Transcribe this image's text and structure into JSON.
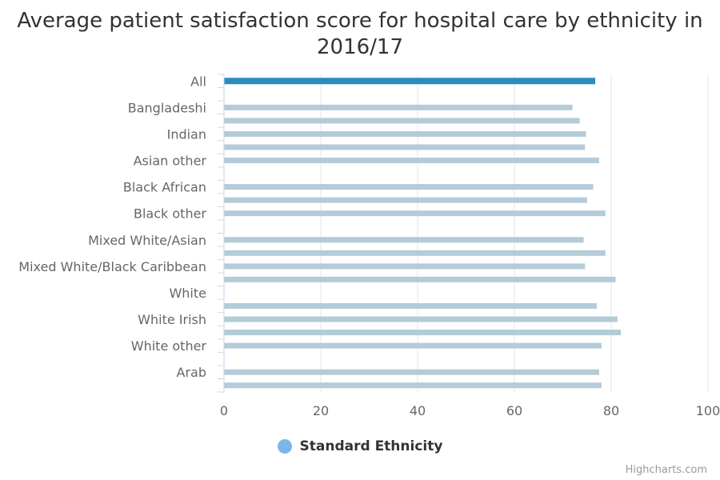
{
  "chart_data": {
    "type": "bar",
    "orientation": "horizontal",
    "title": "Average patient satisfaction score for hospital care by ethnicity in 2016/17",
    "categories": [
      "All",
      "",
      "Bangladeshi",
      "",
      "Indian",
      "",
      "Asian other",
      "",
      "Black African",
      "",
      "Black other",
      "",
      "Mixed White/Asian",
      "",
      "Mixed White/Black Caribbean",
      "",
      "White",
      "",
      "White Irish",
      "",
      "White other",
      "",
      "Arab",
      ""
    ],
    "bars": [
      {
        "category_index": 0,
        "value": 76.7,
        "highlight": true
      },
      {
        "category_index": 2,
        "value": 72.0
      },
      {
        "category_index": 3,
        "value": 73.5
      },
      {
        "category_index": 4,
        "value": 74.8
      },
      {
        "category_index": 5,
        "value": 74.6
      },
      {
        "category_index": 6,
        "value": 77.5
      },
      {
        "category_index": 8,
        "value": 76.3
      },
      {
        "category_index": 9,
        "value": 75.0
      },
      {
        "category_index": 10,
        "value": 78.8
      },
      {
        "category_index": 12,
        "value": 74.3
      },
      {
        "category_index": 13,
        "value": 78.8
      },
      {
        "category_index": 14,
        "value": 74.6
      },
      {
        "category_index": 15,
        "value": 80.9
      },
      {
        "category_index": 17,
        "value": 77.0
      },
      {
        "category_index": 18,
        "value": 81.3
      },
      {
        "category_index": 19,
        "value": 82.0
      },
      {
        "category_index": 20,
        "value": 78.0
      },
      {
        "category_index": 22,
        "value": 77.5
      },
      {
        "category_index": 23,
        "value": 78.0
      }
    ],
    "xlim": [
      0,
      100
    ],
    "ticks": [
      0,
      20,
      40,
      60,
      80,
      100
    ],
    "grid": true,
    "legend": {
      "label": "Standard Ethnicity",
      "position": "bottom-center"
    },
    "colors": {
      "highlight": "#2b8cbe",
      "bar": "#b4cbd8",
      "grid": "#e6e6e6",
      "axis": "#ccd6eb",
      "legend_marker": "#7cb5ec"
    }
  },
  "credits": "Highcharts.com"
}
